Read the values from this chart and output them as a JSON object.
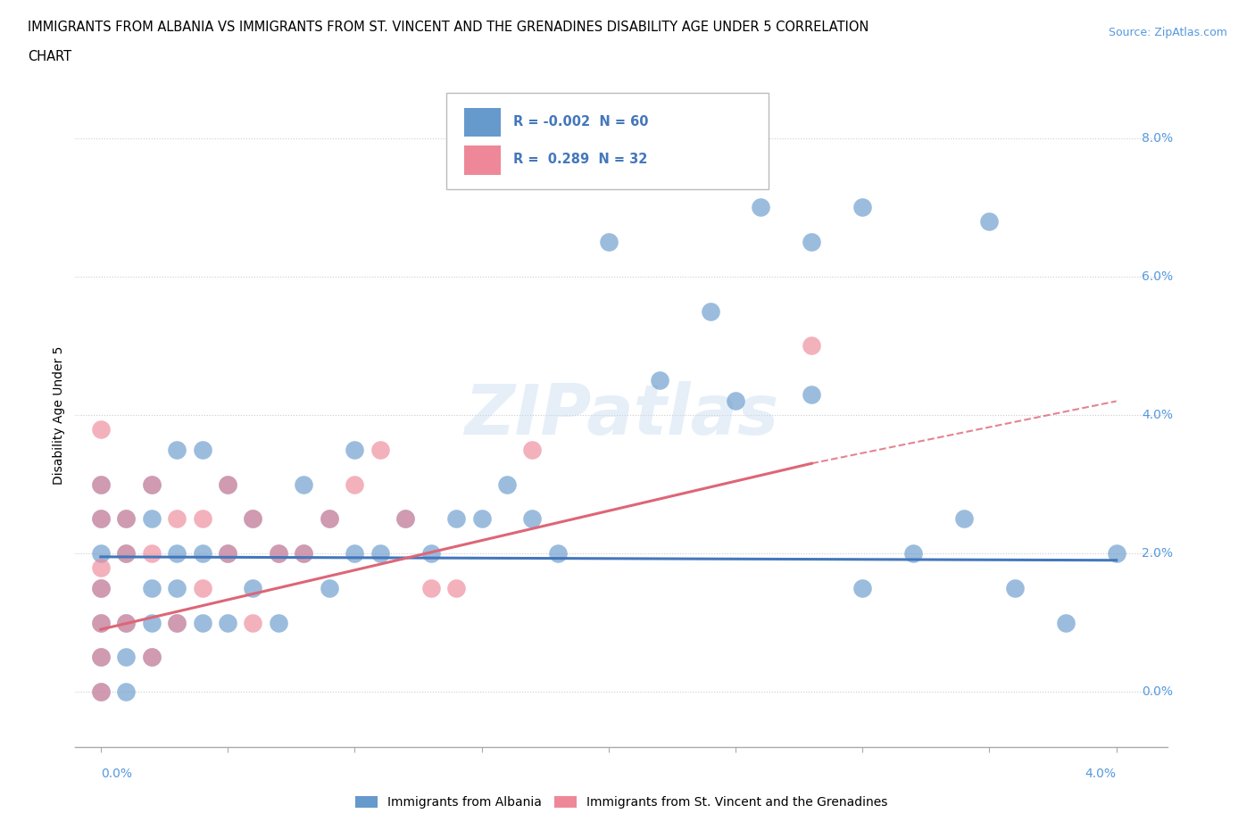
{
  "title_line1": "IMMIGRANTS FROM ALBANIA VS IMMIGRANTS FROM ST. VINCENT AND THE GRENADINES DISABILITY AGE UNDER 5 CORRELATION",
  "title_line2": "CHART",
  "source": "Source: ZipAtlas.com",
  "ylabel": "Disability Age Under 5",
  "ytick_labels": [
    "0.0%",
    "2.0%",
    "4.0%",
    "6.0%",
    "8.0%"
  ],
  "ytick_values": [
    0.0,
    0.02,
    0.04,
    0.06,
    0.08
  ],
  "xtick_labels": [
    "0.0%",
    "4.0%"
  ],
  "xlim": [
    -0.001,
    0.042
  ],
  "ylim": [
    -0.008,
    0.088
  ],
  "plot_xlim": [
    0.0,
    0.04
  ],
  "albania_color": "#6699cc",
  "svg_color": "#ee8899",
  "albania_line_color": "#4477bb",
  "svg_line_color": "#dd6677",
  "albania_R": -0.002,
  "albania_N": 60,
  "svg_R": 0.289,
  "svg_N": 32,
  "legend_label_albania": "Immigrants from Albania",
  "legend_label_svg": "Immigrants from St. Vincent and the Grenadines",
  "watermark": "ZIPatlas",
  "albania_line_y_start": 0.0195,
  "albania_line_y_end": 0.019,
  "svg_line_x_start": 0.0,
  "svg_line_y_start": 0.009,
  "svg_line_x_solid_end": 0.028,
  "svg_line_y_solid_end": 0.033,
  "svg_line_x_end": 0.04,
  "svg_line_y_end": 0.042,
  "albania_x": [
    0.0,
    0.0,
    0.0,
    0.0,
    0.0,
    0.0,
    0.0,
    0.001,
    0.001,
    0.001,
    0.001,
    0.001,
    0.002,
    0.002,
    0.002,
    0.002,
    0.002,
    0.003,
    0.003,
    0.003,
    0.003,
    0.004,
    0.004,
    0.004,
    0.005,
    0.005,
    0.005,
    0.006,
    0.006,
    0.007,
    0.007,
    0.008,
    0.008,
    0.009,
    0.009,
    0.01,
    0.01,
    0.011,
    0.012,
    0.013,
    0.014,
    0.015,
    0.016,
    0.017,
    0.018,
    0.02,
    0.022,
    0.024,
    0.026,
    0.028,
    0.03,
    0.032,
    0.034,
    0.036,
    0.038,
    0.04,
    0.025,
    0.028,
    0.03,
    0.035
  ],
  "albania_y": [
    0.0,
    0.005,
    0.01,
    0.015,
    0.02,
    0.025,
    0.03,
    0.0,
    0.005,
    0.01,
    0.02,
    0.025,
    0.005,
    0.01,
    0.015,
    0.025,
    0.03,
    0.01,
    0.015,
    0.02,
    0.035,
    0.01,
    0.02,
    0.035,
    0.01,
    0.02,
    0.03,
    0.015,
    0.025,
    0.01,
    0.02,
    0.02,
    0.03,
    0.015,
    0.025,
    0.02,
    0.035,
    0.02,
    0.025,
    0.02,
    0.025,
    0.025,
    0.03,
    0.025,
    0.02,
    0.065,
    0.045,
    0.055,
    0.07,
    0.065,
    0.015,
    0.02,
    0.025,
    0.015,
    0.01,
    0.02,
    0.042,
    0.043,
    0.07,
    0.068
  ],
  "svg_x": [
    0.0,
    0.0,
    0.0,
    0.0,
    0.0,
    0.0,
    0.0,
    0.0,
    0.001,
    0.001,
    0.001,
    0.002,
    0.002,
    0.002,
    0.003,
    0.003,
    0.004,
    0.004,
    0.005,
    0.005,
    0.006,
    0.006,
    0.007,
    0.008,
    0.009,
    0.01,
    0.011,
    0.012,
    0.013,
    0.014,
    0.017,
    0.028
  ],
  "svg_y": [
    0.0,
    0.005,
    0.01,
    0.015,
    0.018,
    0.025,
    0.03,
    0.038,
    0.01,
    0.02,
    0.025,
    0.005,
    0.02,
    0.03,
    0.01,
    0.025,
    0.015,
    0.025,
    0.02,
    0.03,
    0.01,
    0.025,
    0.02,
    0.02,
    0.025,
    0.03,
    0.035,
    0.025,
    0.015,
    0.015,
    0.035,
    0.05
  ]
}
